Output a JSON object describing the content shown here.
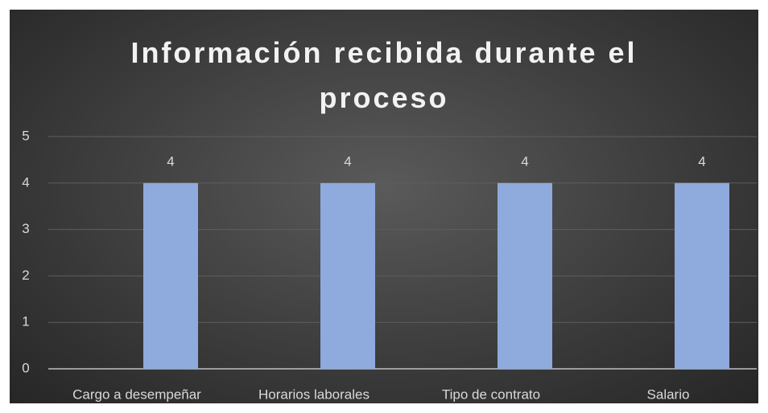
{
  "chart_data": {
    "type": "bar",
    "title": "Información recibida durante el proceso",
    "categories": [
      "Cargo a desempeñar",
      "Horarios laborales",
      "Tipo de contrato",
      "Salario"
    ],
    "values": [
      4,
      4,
      4,
      4
    ],
    "color": "#8faadc",
    "ylim": [
      0,
      5
    ],
    "yticks": [
      0,
      1,
      2,
      3,
      4,
      5
    ],
    "grid": true
  }
}
